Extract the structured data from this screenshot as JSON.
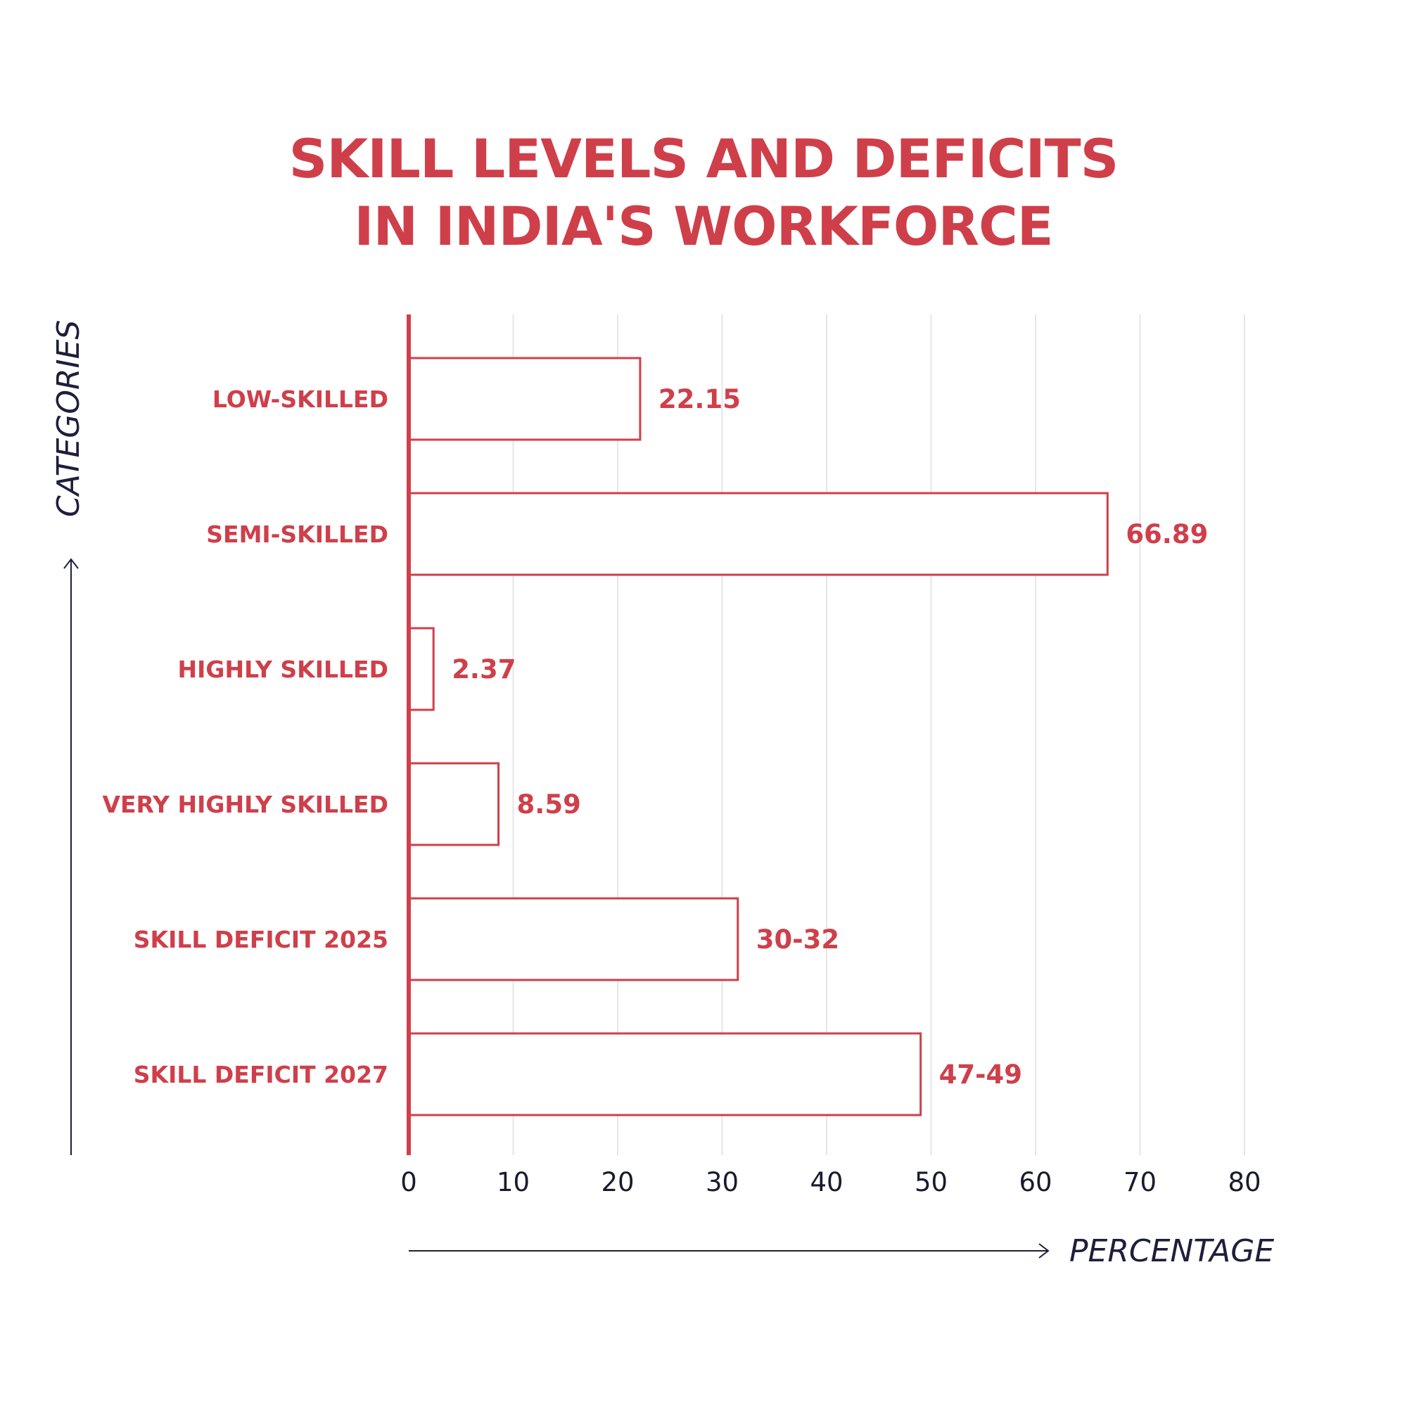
{
  "chart_data": {
    "type": "bar",
    "orientation": "horizontal",
    "title_lines": [
      "SKILL LEVELS AND DEFICITS",
      "IN INDIA'S WORKFORCE"
    ],
    "xlabel": "PERCENTAGE",
    "ylabel": "CATEGORIES",
    "categories": [
      "LOW-SKILLED",
      "SEMI-SKILLED",
      "HIGHLY SKILLED",
      "VERY HIGHLY SKILLED",
      "SKILL DEFICIT 2025",
      "SKILL DEFICIT 2027"
    ],
    "values": [
      22.15,
      66.89,
      2.37,
      8.59,
      31.5,
      49
    ],
    "value_labels": [
      "22.15",
      "66.89",
      "2.37",
      "8.59",
      "30-32",
      "47-49"
    ],
    "xlim": [
      0,
      80
    ],
    "xticks": [
      "0",
      "10",
      "20",
      "30",
      "40",
      "50",
      "60",
      "70",
      "80"
    ],
    "grid": "vertical",
    "bar_style": "outlined",
    "colors": {
      "accent": "#cf3f4a",
      "axis_title": "#1e1e3c",
      "grid": "#e6e6e6"
    }
  }
}
